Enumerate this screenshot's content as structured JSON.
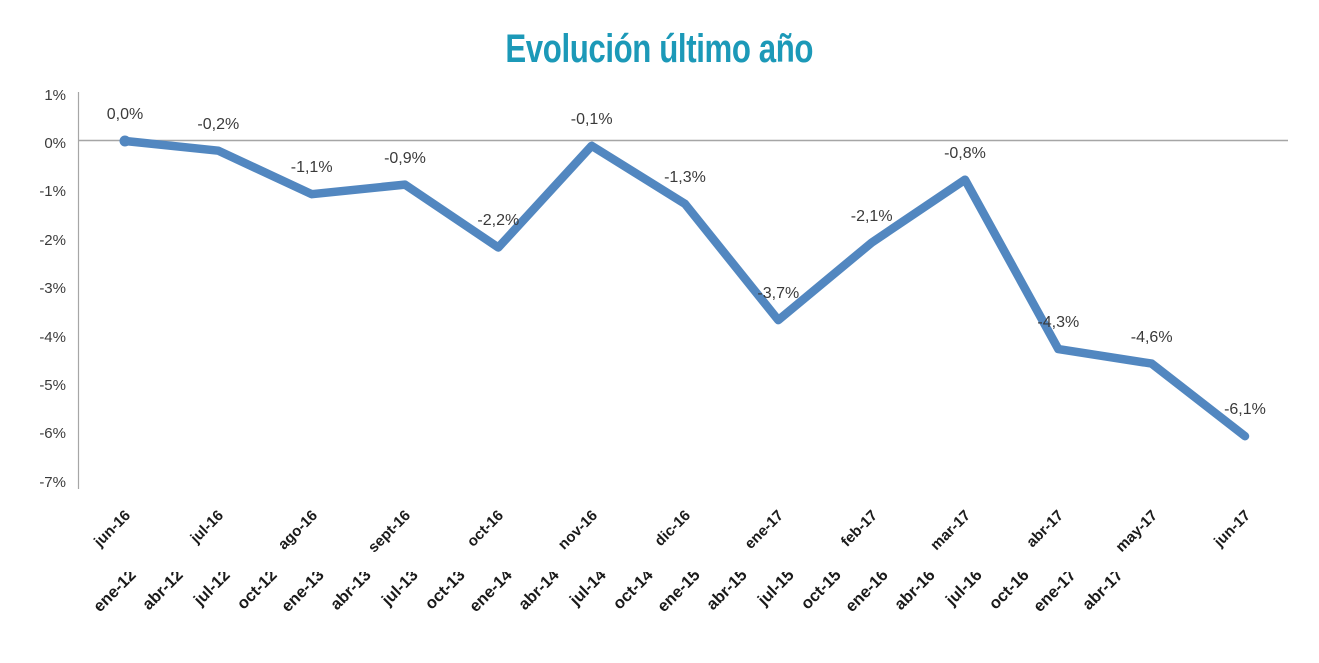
{
  "chart_data": {
    "type": "line",
    "title": "Evolución último año",
    "title_color": "#1C99B8",
    "line_color": "#5287C0",
    "axis_color": "#A6A6A6",
    "categories": [
      "jun-16",
      "jul-16",
      "ago-16",
      "sept-16",
      "oct-16",
      "nov-16",
      "dic-16",
      "ene-17",
      "feb-17",
      "mar-17",
      "abr-17",
      "may-17",
      "jun-17"
    ],
    "values": [
      0.0,
      -0.2,
      -1.1,
      -0.9,
      -2.2,
      -0.1,
      -1.3,
      -3.7,
      -2.1,
      -0.8,
      -4.3,
      -4.6,
      -6.1
    ],
    "point_labels": [
      "0,0%",
      "-0,2%",
      "-1,1%",
      "-0,9%",
      "-2,2%",
      "-0,1%",
      "-1,3%",
      "-3,7%",
      "-2,1%",
      "-0,8%",
      "-4,3%",
      "-4,6%",
      "-6,1%"
    ],
    "y_tick_labels": [
      "1%",
      "0%",
      "-1%",
      "-2%",
      "-3%",
      "-4%",
      "-5%",
      "-6%",
      "-7%"
    ],
    "ylim": [
      -7,
      1
    ],
    "xlabel": "",
    "ylabel": "",
    "legend": "none",
    "grid": "zero-line-only",
    "clipped_second_axis_labels": [
      "ene-12",
      "abr-12",
      "jul-12",
      "oct-12",
      "ene-13",
      "abr-13",
      "jul-13",
      "oct-13",
      "ene-14",
      "abr-14",
      "jul-14",
      "oct-14",
      "ene-15",
      "abr-15",
      "jul-15",
      "oct-15",
      "ene-16",
      "abr-16",
      "jul-16",
      "oct-16",
      "ene-17",
      "abr-17"
    ]
  }
}
